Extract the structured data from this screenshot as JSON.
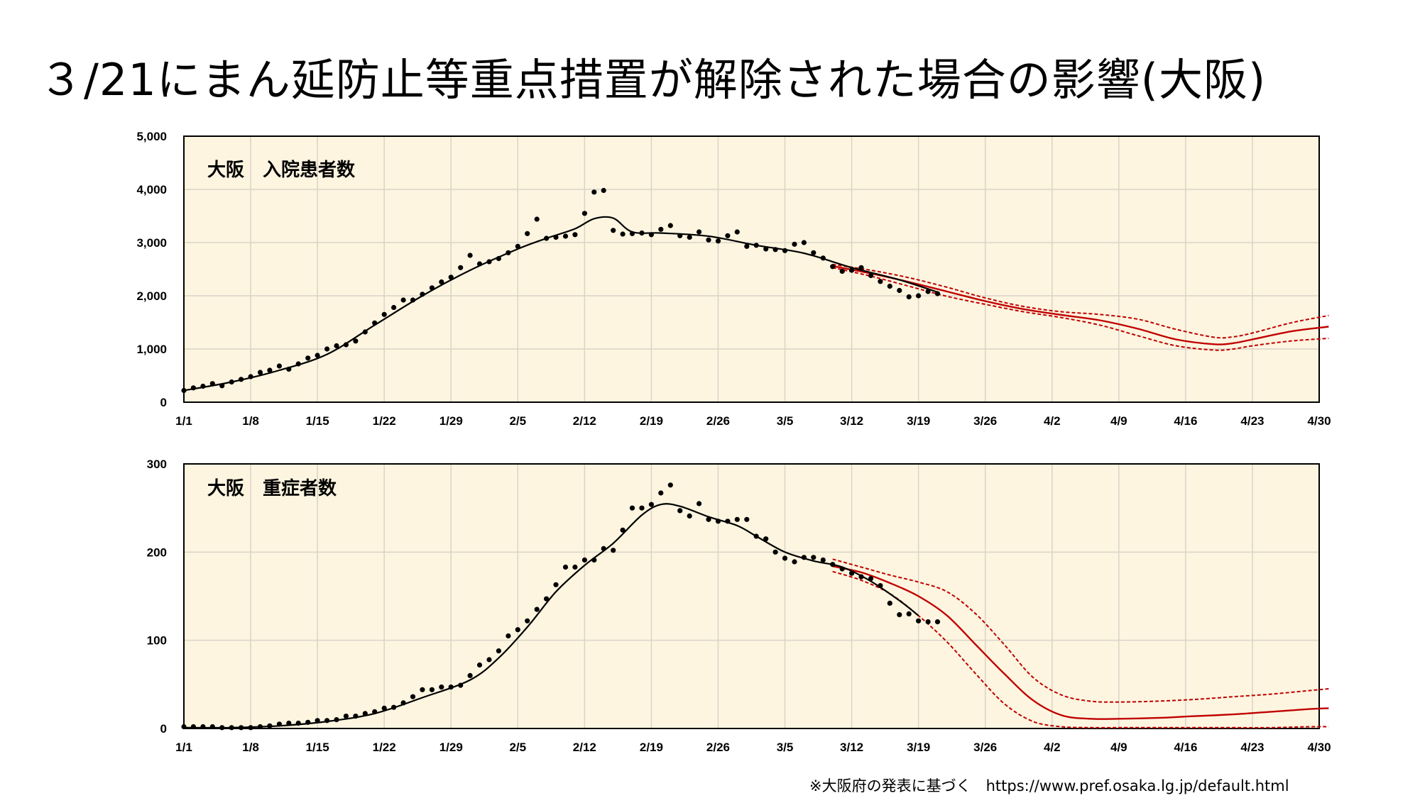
{
  "title": "３/21にまん延防止等重点措置が解除された場合の影響(大阪)",
  "footnote": "※大阪府の発表に基づく　https://www.pref.osaka.lg.jp/default.html",
  "colors": {
    "background": "#fdf5e0",
    "grid": "#d9d4c8",
    "observed": "#000000",
    "projection": "#c00000"
  },
  "chart_data": [
    {
      "type": "line",
      "title": "大阪　入院患者数",
      "x_tick_labels": [
        "1/1",
        "1/8",
        "1/15",
        "1/22",
        "1/29",
        "2/5",
        "2/12",
        "2/19",
        "2/26",
        "3/5",
        "3/12",
        "3/19",
        "3/26",
        "4/2",
        "4/9",
        "4/16",
        "4/23",
        "4/30"
      ],
      "x_unit": "days since 1/1",
      "ylim": [
        0,
        5000
      ],
      "y_tick_labels": [
        "0",
        "1,000",
        "2,000",
        "3,000",
        "4,000",
        "5,000"
      ],
      "y_ticks": [
        0,
        1000,
        2000,
        3000,
        4000,
        5000
      ],
      "grid": true,
      "series": [
        {
          "role": "observed-points",
          "x": [
            0,
            1,
            2,
            3,
            4,
            5,
            6,
            7,
            8,
            9,
            10,
            11,
            12,
            13,
            14,
            15,
            16,
            17,
            18,
            19,
            20,
            21,
            22,
            23,
            24,
            25,
            26,
            27,
            28,
            29,
            30,
            31,
            32,
            33,
            34,
            35,
            36,
            37,
            38,
            39,
            40,
            41,
            42,
            43,
            44,
            45,
            46,
            47,
            48,
            49,
            50,
            51,
            52,
            53,
            54,
            55,
            56,
            57,
            58,
            59,
            60,
            61,
            62,
            63,
            64,
            65,
            66,
            67,
            68,
            69,
            70,
            71,
            72,
            73,
            74,
            75,
            76,
            77,
            78,
            79
          ],
          "values": [
            220,
            270,
            300,
            350,
            310,
            380,
            430,
            480,
            560,
            600,
            680,
            620,
            720,
            830,
            880,
            1000,
            1060,
            1080,
            1150,
            1320,
            1490,
            1650,
            1780,
            1920,
            1920,
            2030,
            2150,
            2260,
            2350,
            2530,
            2760,
            2600,
            2640,
            2700,
            2810,
            2930,
            3170,
            3440,
            3080,
            3100,
            3120,
            3150,
            3550,
            3950,
            3980,
            3230,
            3160,
            3170,
            3180,
            3150,
            3250,
            3320,
            3130,
            3100,
            3200,
            3050,
            3030,
            3130,
            3200,
            2930,
            2950,
            2880,
            2870,
            2850,
            2970,
            3000,
            2810,
            2710,
            2550,
            2460,
            2480,
            2530,
            2380,
            2270,
            2180,
            2100,
            1980,
            2000,
            2080,
            2040
          ]
        },
        {
          "role": "observed-trend",
          "x": [
            0,
            5,
            10,
            15,
            20,
            25,
            30,
            35,
            38,
            41,
            43,
            45,
            47,
            50,
            55,
            60,
            65,
            70,
            75,
            79
          ],
          "values": [
            220,
            380,
            600,
            900,
            1450,
            2000,
            2480,
            2880,
            3080,
            3260,
            3450,
            3460,
            3200,
            3180,
            3120,
            2950,
            2800,
            2530,
            2300,
            2070
          ]
        },
        {
          "role": "projection-center",
          "x": [
            68,
            72,
            76,
            80,
            84,
            88,
            92,
            96,
            100,
            104,
            108,
            110,
            112,
            116,
            120
          ],
          "values": [
            2560,
            2420,
            2260,
            2080,
            1900,
            1750,
            1640,
            1540,
            1380,
            1180,
            1090,
            1110,
            1180,
            1330,
            1420
          ]
        },
        {
          "role": "projection-upper",
          "x": [
            68,
            72,
            76,
            80,
            84,
            88,
            92,
            96,
            100,
            104,
            108,
            110,
            112,
            116,
            120
          ],
          "values": [
            2590,
            2480,
            2340,
            2160,
            1960,
            1800,
            1700,
            1650,
            1560,
            1370,
            1220,
            1230,
            1300,
            1490,
            1630
          ]
        },
        {
          "role": "projection-lower",
          "x": [
            68,
            72,
            76,
            80,
            84,
            88,
            92,
            96,
            100,
            104,
            108,
            110,
            112,
            116,
            120
          ],
          "values": [
            2530,
            2370,
            2180,
            1990,
            1840,
            1700,
            1590,
            1450,
            1250,
            1060,
            980,
            1000,
            1060,
            1150,
            1200
          ]
        }
      ]
    },
    {
      "type": "line",
      "title": "大阪　重症者数",
      "x_tick_labels": [
        "1/1",
        "1/8",
        "1/15",
        "1/22",
        "1/29",
        "2/5",
        "2/12",
        "2/19",
        "2/26",
        "3/5",
        "3/12",
        "3/19",
        "3/26",
        "4/2",
        "4/9",
        "4/16",
        "4/23",
        "4/30"
      ],
      "x_unit": "days since 1/1",
      "ylim": [
        0,
        300
      ],
      "y_tick_labels": [
        "0",
        "100",
        "200",
        "300"
      ],
      "y_ticks": [
        0,
        100,
        200,
        300
      ],
      "grid": true,
      "series": [
        {
          "role": "observed-points",
          "x": [
            0,
            1,
            2,
            3,
            4,
            5,
            6,
            7,
            8,
            9,
            10,
            11,
            12,
            13,
            14,
            15,
            16,
            17,
            18,
            19,
            20,
            21,
            22,
            23,
            24,
            25,
            26,
            27,
            28,
            29,
            30,
            31,
            32,
            33,
            34,
            35,
            36,
            37,
            38,
            39,
            40,
            41,
            42,
            43,
            44,
            45,
            46,
            47,
            48,
            49,
            50,
            51,
            52,
            53,
            54,
            55,
            56,
            57,
            58,
            59,
            60,
            61,
            62,
            63,
            64,
            65,
            66,
            67,
            68,
            69,
            70,
            71,
            72,
            73,
            74,
            75,
            76,
            77,
            78,
            79
          ],
          "values": [
            2,
            2,
            2,
            2,
            1,
            1,
            1,
            1,
            2,
            3,
            5,
            6,
            6,
            7,
            9,
            9,
            10,
            14,
            14,
            17,
            19,
            23,
            24,
            29,
            36,
            44,
            44,
            47,
            47,
            49,
            60,
            72,
            78,
            88,
            105,
            112,
            122,
            135,
            147,
            163,
            183,
            183,
            191,
            191,
            204,
            202,
            225,
            250,
            250,
            254,
            267,
            276,
            247,
            241,
            255,
            237,
            235,
            235,
            237,
            237,
            218,
            215,
            200,
            193,
            189,
            194,
            194,
            191,
            186,
            181,
            176,
            172,
            170,
            162,
            142,
            129,
            130,
            122,
            121,
            121
          ]
        },
        {
          "role": "observed-trend",
          "x": [
            0,
            5,
            10,
            15,
            20,
            25,
            30,
            33,
            36,
            39,
            42,
            45,
            48,
            50,
            52,
            55,
            58,
            60,
            63,
            66,
            69,
            72,
            75,
            77
          ],
          "values": [
            1,
            1,
            3,
            8,
            17,
            35,
            55,
            80,
            115,
            155,
            185,
            210,
            242,
            254,
            252,
            240,
            230,
            218,
            200,
            190,
            183,
            167,
            145,
            128
          ]
        },
        {
          "role": "projection-center",
          "x": [
            68,
            71,
            74,
            77,
            80,
            83,
            86,
            89,
            92,
            95,
            98,
            102,
            106,
            110,
            114,
            118,
            120
          ],
          "values": [
            184,
            177,
            165,
            150,
            128,
            95,
            62,
            32,
            15,
            11,
            11,
            12,
            14,
            16,
            19,
            22,
            23
          ]
        },
        {
          "role": "projection-upper",
          "x": [
            68,
            71,
            74,
            77,
            80,
            83,
            86,
            89,
            92,
            95,
            98,
            102,
            106,
            110,
            114,
            118,
            120
          ],
          "values": [
            192,
            183,
            174,
            166,
            155,
            130,
            95,
            58,
            38,
            31,
            30,
            31,
            33,
            36,
            39,
            43,
            45
          ]
        },
        {
          "role": "projection-lower",
          "x": [
            68,
            71,
            74,
            77,
            80,
            83,
            86,
            89,
            92,
            95,
            98,
            102,
            106,
            110,
            114,
            118,
            120
          ],
          "values": [
            178,
            168,
            153,
            128,
            98,
            62,
            28,
            8,
            2,
            1,
            1,
            1,
            1,
            1,
            1,
            2,
            2
          ]
        }
      ]
    }
  ]
}
